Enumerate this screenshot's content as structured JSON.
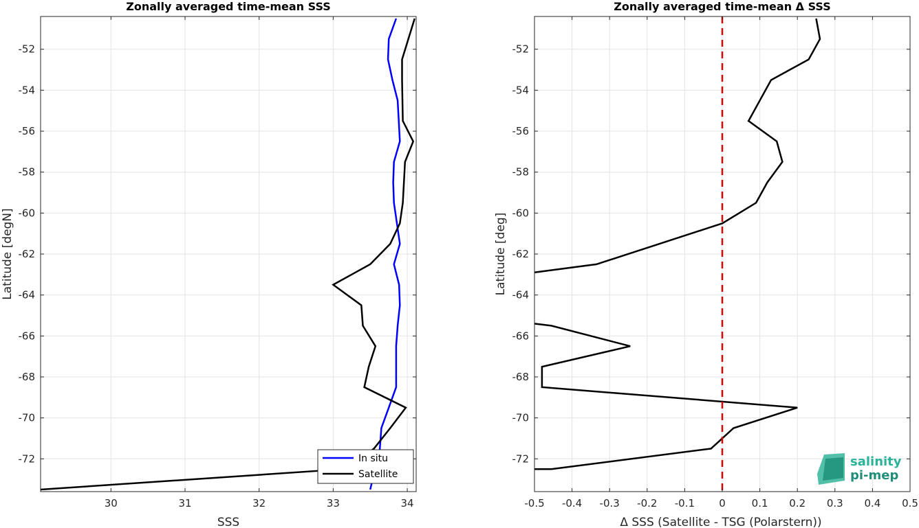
{
  "chart_data": [
    {
      "type": "line",
      "title": "Zonally averaged time-mean SSS",
      "xlabel": "SSS",
      "ylabel": "Latitude [degN]",
      "xlim": [
        29.05,
        34.12
      ],
      "ylim": [
        -73.6,
        -50.4
      ],
      "xticks": [
        30,
        31,
        32,
        33,
        34
      ],
      "yticks": [
        -52,
        -54,
        -56,
        -58,
        -60,
        -62,
        -64,
        -66,
        -68,
        -70,
        -72
      ],
      "grid": true,
      "legend_position": "bottom-right",
      "series": [
        {
          "name": "In situ",
          "color": "#0000ff",
          "x": [
            33.85,
            33.75,
            33.74,
            33.8,
            33.87,
            33.9,
            33.82,
            33.81,
            33.82,
            33.9,
            33.82,
            33.89,
            33.9,
            33.87,
            33.85,
            33.85,
            33.85,
            33.75,
            33.65,
            33.63,
            33.5
          ],
          "y": [
            -50.5,
            -51.5,
            -52.5,
            -53.5,
            -54.5,
            -56.5,
            -57.5,
            -58.5,
            -59.5,
            -61.5,
            -62.5,
            -63.5,
            -64.5,
            -65.5,
            -66.5,
            -67.5,
            -68.5,
            -69.5,
            -70.5,
            -71.5,
            -73.5
          ]
        },
        {
          "name": "Satellite",
          "color": "#000000",
          "x": [
            34.1,
            33.93,
            33.93,
            33.94,
            34.08,
            33.97,
            33.94,
            33.9,
            33.77,
            33.5,
            33.0,
            33.38,
            33.4,
            33.57,
            33.48,
            33.42,
            33.98,
            33.77,
            33.55,
            33.15,
            29.05
          ],
          "y": [
            -50.5,
            -52.5,
            -53.5,
            -55.5,
            -56.5,
            -57.5,
            -59.5,
            -60.5,
            -61.5,
            -62.5,
            -63.5,
            -64.5,
            -65.5,
            -66.5,
            -67.5,
            -68.5,
            -69.5,
            -70.5,
            -71.5,
            -72.5,
            -73.5
          ]
        }
      ]
    },
    {
      "type": "line",
      "title": "Zonally averaged time-mean Δ SSS",
      "xlabel": "Δ SSS (Satellite - TSG (Polarstern))",
      "ylabel": "Latitude [deg]",
      "xlim": [
        -0.5,
        0.5
      ],
      "ylim": [
        -73.6,
        -50.4
      ],
      "xticks": [
        -0.5,
        -0.4,
        -0.3,
        -0.2,
        -0.1,
        0,
        0.1,
        0.2,
        0.3,
        0.4,
        0.5
      ],
      "yticks": [
        -52,
        -54,
        -56,
        -58,
        -60,
        -62,
        -64,
        -66,
        -68,
        -70,
        -72
      ],
      "grid": true,
      "reference_line": {
        "x": 0,
        "color": "#dd0000",
        "style": "dashed"
      },
      "series": [
        {
          "color": "#000000",
          "x": [
            0.25,
            0.26,
            0.23,
            0.13,
            0.1,
            0.07,
            0.145,
            0.16,
            0.12,
            0.09,
            0,
            -0.335,
            -0.5
          ],
          "y": [
            -50.5,
            -51.5,
            -52.5,
            -53.5,
            -54.5,
            -55.5,
            -56.5,
            -57.5,
            -58.5,
            -59.5,
            -60.5,
            -62.5,
            -62.9
          ]
        },
        {
          "color": "#000000",
          "x": [
            -0.5,
            -0.455,
            -0.245,
            -0.48,
            -0.48,
            0.2,
            0.03,
            -0.03,
            -0.455,
            -0.5
          ],
          "y": [
            -65.4,
            -65.5,
            -66.5,
            -67.5,
            -68.5,
            -69.5,
            -70.5,
            -71.5,
            -72.5,
            -72.5
          ]
        }
      ]
    }
  ],
  "logo": {
    "line1": "salinity",
    "line2": "pi-mep"
  }
}
